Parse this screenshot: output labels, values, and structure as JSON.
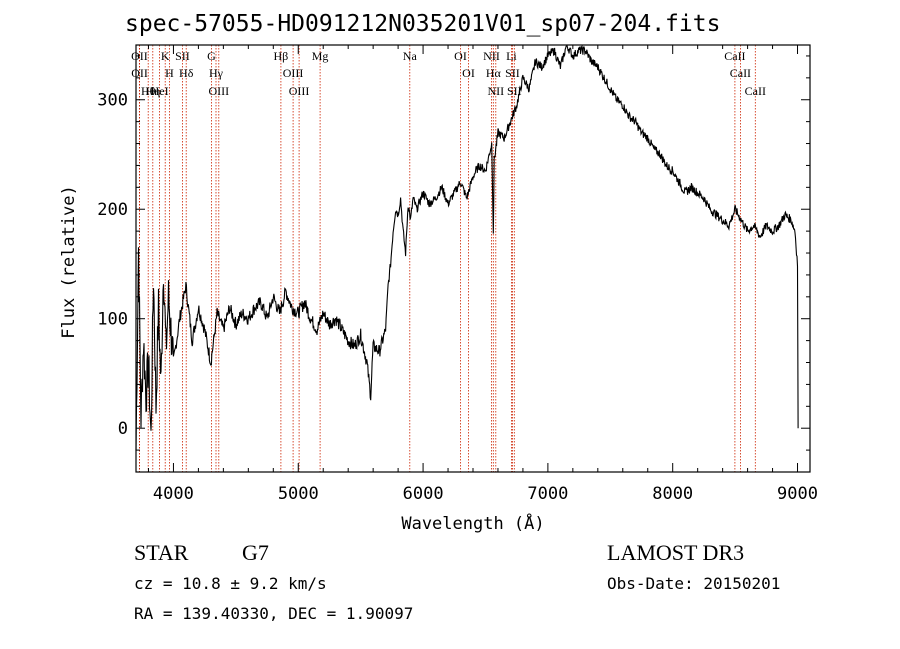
{
  "chart_data": {
    "type": "line",
    "title": "spec-57055-HD091212N035201V01_sp07-204.fits",
    "xlabel": "Wavelength (Å)",
    "ylabel": "Flux (relative)",
    "xlim": [
      3700,
      9100
    ],
    "ylim": [
      -40,
      350
    ],
    "xticks": [
      4000,
      5000,
      6000,
      7000,
      8000,
      9000
    ],
    "yticks": [
      0,
      100,
      200,
      300
    ],
    "series": [
      {
        "name": "spectrum",
        "x": [
          3700,
          3720,
          3740,
          3760,
          3780,
          3800,
          3820,
          3840,
          3860,
          3880,
          3900,
          3920,
          3940,
          3960,
          3980,
          4000,
          4050,
          4100,
          4150,
          4200,
          4250,
          4300,
          4350,
          4400,
          4450,
          4500,
          4550,
          4600,
          4650,
          4700,
          4750,
          4800,
          4850,
          4900,
          4950,
          5000,
          5050,
          5100,
          5150,
          5200,
          5250,
          5300,
          5350,
          5400,
          5450,
          5500,
          5550,
          5580,
          5600,
          5650,
          5700,
          5720,
          5740,
          5760,
          5780,
          5800,
          5820,
          5840,
          5860,
          5880,
          5900,
          5920,
          5950,
          6000,
          6050,
          6100,
          6150,
          6200,
          6250,
          6300,
          6350,
          6400,
          6450,
          6500,
          6530,
          6550,
          6563,
          6570,
          6600,
          6650,
          6700,
          6750,
          6800,
          6850,
          6900,
          6950,
          7000,
          7050,
          7100,
          7150,
          7200,
          7250,
          7300,
          7350,
          7400,
          7450,
          7500,
          7550,
          7600,
          7650,
          7700,
          7750,
          7800,
          7850,
          7900,
          7950,
          8000,
          8050,
          8100,
          8150,
          8200,
          8250,
          8300,
          8350,
          8400,
          8450,
          8500,
          8550,
          8600,
          8650,
          8700,
          8750,
          8800,
          8850,
          8900,
          8950,
          8980,
          9000,
          9005
        ],
        "values": [
          -20,
          165,
          10,
          80,
          30,
          60,
          -10,
          140,
          20,
          110,
          40,
          150,
          70,
          120,
          90,
          60,
          100,
          130,
          80,
          110,
          90,
          60,
          105,
          90,
          110,
          95,
          105,
          100,
          110,
          115,
          100,
          120,
          105,
          125,
          110,
          105,
          115,
          100,
          90,
          105,
          95,
          100,
          90,
          80,
          75,
          85,
          60,
          30,
          75,
          70,
          90,
          130,
          150,
          180,
          200,
          195,
          210,
          180,
          160,
          205,
          190,
          210,
          200,
          215,
          205,
          210,
          220,
          205,
          215,
          225,
          210,
          230,
          240,
          235,
          250,
          260,
          180,
          245,
          270,
          265,
          280,
          295,
          320,
          310,
          335,
          330,
          340,
          345,
          330,
          350,
          340,
          345,
          345,
          335,
          330,
          320,
          310,
          300,
          295,
          285,
          280,
          270,
          265,
          255,
          250,
          240,
          235,
          225,
          215,
          220,
          215,
          210,
          200,
          195,
          190,
          185,
          200,
          190,
          180,
          185,
          175,
          185,
          180,
          185,
          195,
          190,
          180,
          150,
          0
        ]
      }
    ],
    "lines": [
      {
        "label": "Hθ",
        "x": 3798
      },
      {
        "label": "OII",
        "x": 3727
      },
      {
        "label": "OII",
        "x": 3729
      },
      {
        "label": "Hη",
        "x": 3835
      },
      {
        "label": "K",
        "x": 3934
      },
      {
        "label": "HeI",
        "x": 3889
      },
      {
        "label": "H",
        "x": 3968
      },
      {
        "label": "Hδ",
        "x": 4102
      },
      {
        "label": "SII",
        "x": 4072
      },
      {
        "label": "OIII",
        "x": 4363
      },
      {
        "label": "Hγ",
        "x": 4341
      },
      {
        "label": "G",
        "x": 4304
      },
      {
        "label": "OIII",
        "x": 5007
      },
      {
        "label": "OIII",
        "x": 4959
      },
      {
        "label": "Hβ",
        "x": 4861
      },
      {
        "label": "Mg",
        "x": 5175
      },
      {
        "label": "Na",
        "x": 5894
      },
      {
        "label": "OI",
        "x": 6300
      },
      {
        "label": "OI",
        "x": 6364
      },
      {
        "label": "Hα",
        "x": 6563
      },
      {
        "label": "NII",
        "x": 6548
      },
      {
        "label": "NII",
        "x": 6583
      },
      {
        "label": "SII",
        "x": 6716
      },
      {
        "label": "SII",
        "x": 6731
      },
      {
        "label": "Li",
        "x": 6708
      },
      {
        "label": "CaII",
        "x": 8542
      },
      {
        "label": "CaII",
        "x": 8498
      },
      {
        "label": "CaII",
        "x": 8662
      }
    ]
  },
  "info": {
    "object_class": "STAR",
    "subclass": "G7",
    "survey": "LAMOST DR3",
    "cz": "cz = 10.8 ± 9.2 km/s",
    "obs_date": "Obs-Date: 20150201",
    "radec": "RA = 139.40330, DEC =    1.90097"
  },
  "colors": {
    "line": "#000000",
    "marker": "#cc2200"
  }
}
